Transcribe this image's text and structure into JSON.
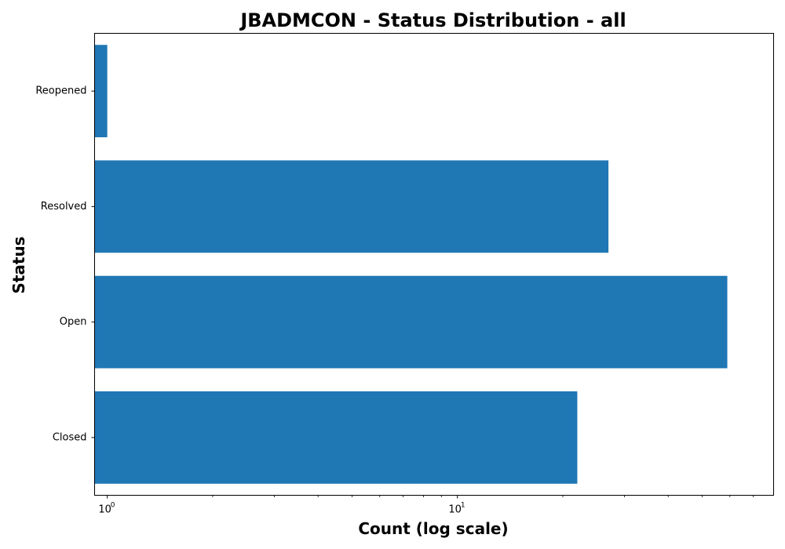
{
  "chart_data": {
    "type": "bar",
    "orientation": "horizontal",
    "title": "JBADMCON - Status Distribution - all",
    "xlabel": "Count (log scale)",
    "ylabel": "Status",
    "x_scale": "log",
    "xlim": [
      0.92,
      80
    ],
    "x_major_ticks": [
      {
        "value": 1,
        "base": "10",
        "exp": "0"
      },
      {
        "value": 10,
        "base": "10",
        "exp": "1"
      }
    ],
    "categories": [
      "Closed",
      "Open",
      "Resolved",
      "Reopened"
    ],
    "values": [
      22,
      59,
      27,
      1
    ],
    "color": "#1f77b4",
    "grid": false,
    "legend": "none"
  }
}
